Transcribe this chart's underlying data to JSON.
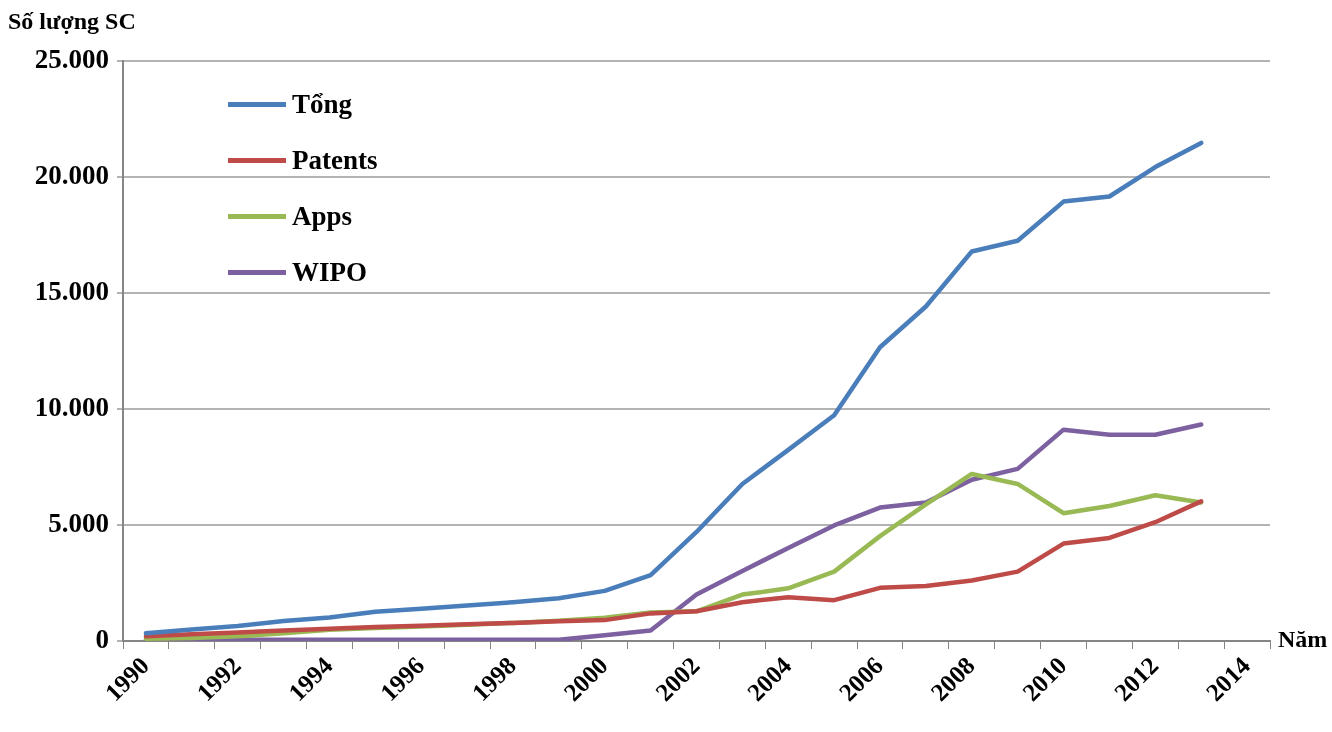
{
  "chart_data": {
    "type": "line",
    "ylabel": "Số lượng SC",
    "xlabel": "Năm",
    "categories": [
      "1990",
      null,
      "1992",
      null,
      "1994",
      null,
      "1996",
      null,
      "1998",
      null,
      "2000",
      null,
      "2002",
      null,
      "2004",
      null,
      "2006",
      null,
      "2008",
      null,
      "2010",
      null,
      "2012",
      null,
      "2014"
    ],
    "series": [
      {
        "name": "Tổng",
        "color": "#4a7ebb",
        "values": [
          330,
          500,
          650,
          860,
          1010,
          1260,
          1390,
          1530,
          1670,
          1840,
          2160,
          2840,
          4700,
          6770,
          8240,
          9730,
          12660,
          14420,
          16790,
          17250,
          18940,
          19160,
          20430,
          21470,
          null
        ]
      },
      {
        "name": "Patents",
        "color": "#be4b48",
        "values": [
          200,
          290,
          370,
          450,
          530,
          600,
          660,
          720,
          780,
          850,
          900,
          1190,
          1280,
          1670,
          1890,
          1760,
          2290,
          2370,
          2610,
          2990,
          4200,
          4440,
          5120,
          6020,
          null
        ]
      },
      {
        "name": "Apps",
        "color": "#98b954",
        "values": [
          100,
          130,
          200,
          330,
          480,
          560,
          630,
          700,
          780,
          870,
          1000,
          1230,
          1280,
          2000,
          2270,
          2990,
          4520,
          5890,
          7200,
          6770,
          5510,
          5820,
          6280,
          5970,
          null
        ]
      },
      {
        "name": "WIPO",
        "color": "#7d60a0",
        "values": [
          50,
          50,
          50,
          50,
          50,
          50,
          50,
          50,
          50,
          50,
          250,
          450,
          2000,
          3020,
          4010,
          4980,
          5750,
          5970,
          6950,
          7420,
          9110,
          8890,
          8890,
          9330,
          null
        ]
      }
    ],
    "ylim": [
      0,
      25000
    ],
    "yticks": [
      0,
      {
        "value": 5000,
        "label": "5.000"
      },
      {
        "value": 10000,
        "label": "10.000"
      },
      {
        "value": 15000,
        "label": "15.000"
      },
      {
        "value": 20000,
        "label": "20.000"
      },
      {
        "value": 25000,
        "label": "25.000"
      }
    ],
    "grid": "y",
    "legend": "top left",
    "marker": "none",
    "line_style": "solid"
  }
}
